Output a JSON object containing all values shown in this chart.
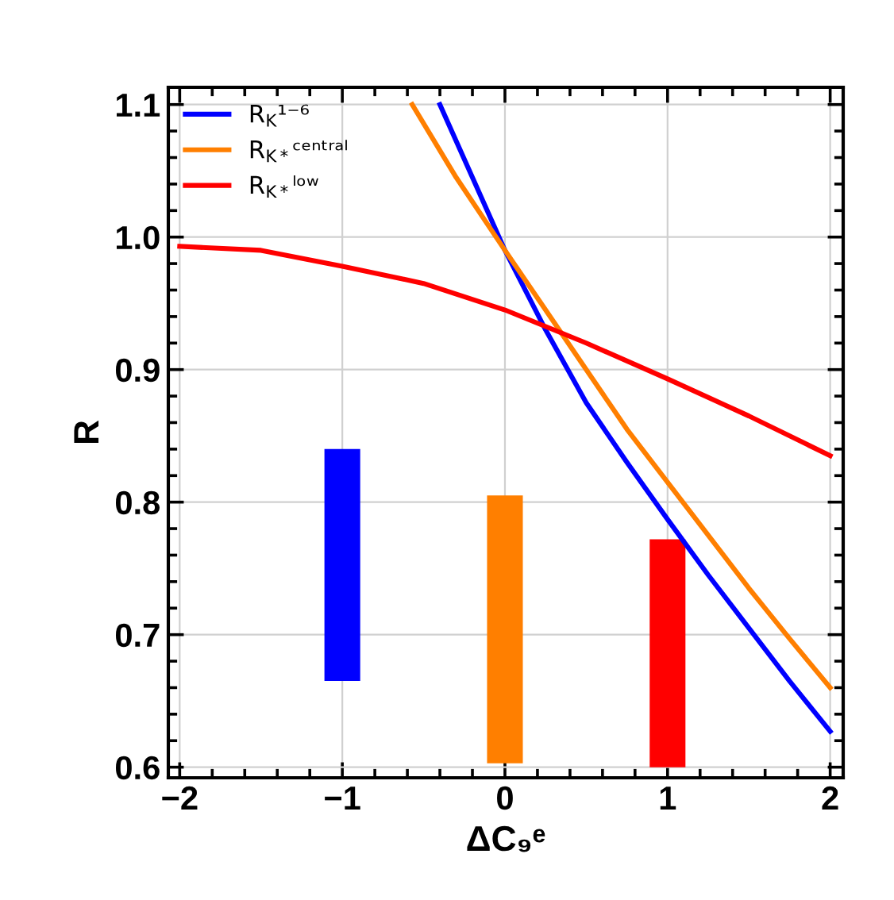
{
  "chart_data": {
    "type": "line",
    "xlabel": "ΔC₉ᵉ",
    "ylabel": "R",
    "series": [
      {
        "name": "R$_{K}$¹⁻⁶",
        "color": "#0000ff",
        "x": [
          -0.4,
          -0.2,
          0,
          0.25,
          0.5,
          0.75,
          1,
          1.25,
          1.5,
          1.75,
          2
        ],
        "values": [
          1.1,
          1.045,
          0.99,
          0.93,
          0.875,
          0.83,
          0.787,
          0.745,
          0.705,
          0.665,
          0.627
        ]
      },
      {
        "name": "R$_{K*}$ᶜᵉⁿᵗʳᵃˡ",
        "color": "#ff7f00",
        "x": [
          -0.57,
          -0.3,
          0,
          0.25,
          0.5,
          0.75,
          1,
          1.25,
          1.5,
          1.75,
          2
        ],
        "values": [
          1.1,
          1.045,
          0.99,
          0.945,
          0.9,
          0.855,
          0.815,
          0.775,
          0.735,
          0.697,
          0.66
        ]
      },
      {
        "name": "R$_{K*}$ˡᵒʷ",
        "color": "#ff0000",
        "x": [
          -2,
          -1.5,
          -1,
          -0.5,
          0,
          0.5,
          1,
          1.5,
          2
        ],
        "values": [
          0.993,
          0.99,
          0.978,
          0.965,
          0.945,
          0.92,
          0.893,
          0.865,
          0.835
        ]
      },
      {
        "type": "bar",
        "x": [
          -1,
          0,
          1
        ],
        "base": [
          0.665,
          0.603,
          0.6
        ],
        "values": [
          0.175,
          0.202,
          0.172
        ],
        "colors": [
          "#0000ff",
          "#ff7f00",
          "#ff0000"
        ]
      }
    ],
    "xlim": [
      -2.07,
      2.08
    ],
    "xticks": [
      {
        "value": -2,
        "label": "−2"
      },
      {
        "value": -1,
        "label": "−1"
      },
      0,
      1,
      2
    ],
    "ylim": [
      0.592,
      1.113
    ],
    "yticks": [
      0.6,
      0.7,
      0.8,
      0.9,
      {
        "value": 1.0,
        "label": "1.0"
      },
      1.1
    ],
    "grid": true,
    "legend": "top left",
    "line_style": "solid",
    "marker": "none"
  }
}
